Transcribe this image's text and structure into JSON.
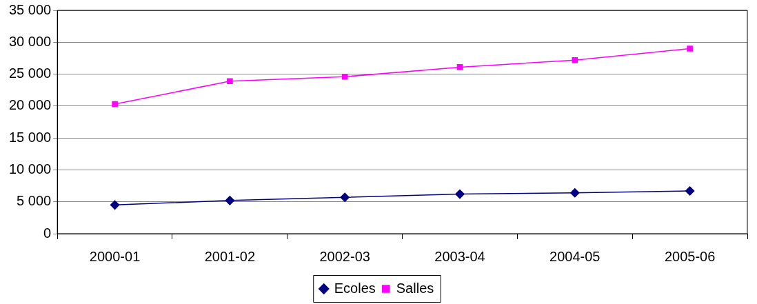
{
  "chart_data": {
    "type": "line",
    "categories": [
      "2000-01",
      "2001-02",
      "2002-03",
      "2003-04",
      "2004-05",
      "2005-06"
    ],
    "series": [
      {
        "name": "Ecoles",
        "color": "#000080",
        "marker": "diamond",
        "values": [
          4500,
          5200,
          5700,
          6200,
          6400,
          6700
        ]
      },
      {
        "name": "Salles",
        "color": "#ff00ff",
        "marker": "square",
        "values": [
          20300,
          23900,
          24600,
          26100,
          27200,
          29000
        ]
      }
    ],
    "ylim": [
      0,
      35000
    ],
    "yticks": [
      0,
      5000,
      10000,
      15000,
      20000,
      25000,
      30000,
      35000
    ],
    "grid": "y",
    "legend": "bottom",
    "line_style": "solid"
  }
}
